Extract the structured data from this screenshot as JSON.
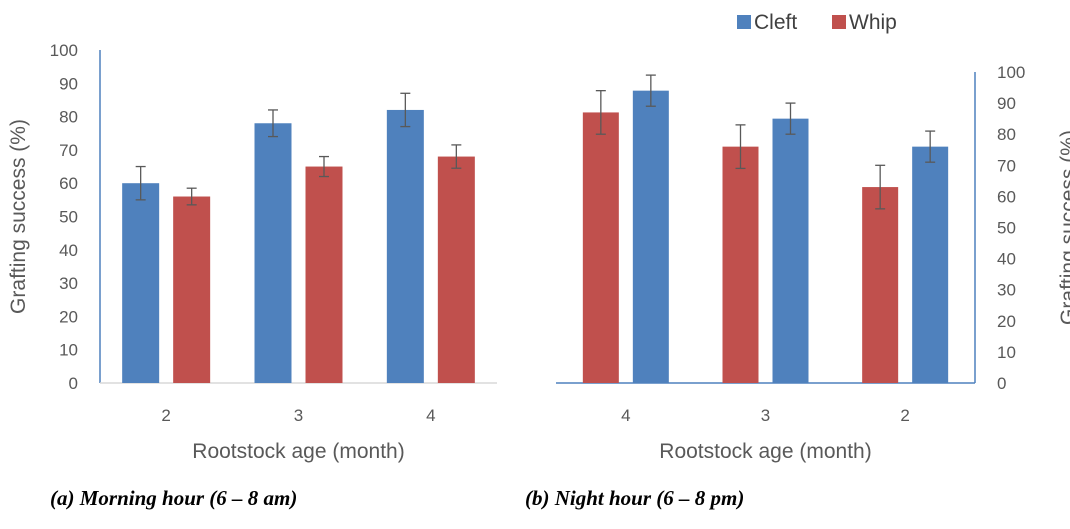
{
  "legend": [
    {
      "name": "Cleft",
      "color": "#4F81BD"
    },
    {
      "name": "Whip",
      "color": "#C0504D"
    }
  ],
  "chart_data": [
    {
      "type": "bar",
      "caption": "(a) Morning hour (6 – 8 am)",
      "xlabel": "Rootstock age (month)",
      "ylabel": "Grafting success (%)",
      "ylim": [
        0,
        100
      ],
      "yticks": [
        0,
        10,
        20,
        30,
        40,
        50,
        60,
        70,
        80,
        90,
        100
      ],
      "y_axis_position": "left",
      "grid": false,
      "categories": [
        "2",
        "3",
        "4"
      ],
      "series": [
        {
          "name": "Cleft",
          "color": "#4F81BD",
          "values": [
            60,
            78,
            82
          ],
          "errors": [
            5,
            4,
            5
          ]
        },
        {
          "name": "Whip",
          "color": "#C0504D",
          "values": [
            56,
            65,
            68
          ],
          "errors": [
            2.5,
            3,
            3.5
          ]
        }
      ]
    },
    {
      "type": "bar",
      "caption": "(b) Night hour (6 – 8 pm)",
      "xlabel": "Rootstock age (month)",
      "ylabel": "Grafting success (%)",
      "ylim": [
        0,
        100
      ],
      "yticks": [
        0,
        10,
        20,
        30,
        40,
        50,
        60,
        70,
        80,
        90,
        100
      ],
      "y_axis_position": "right",
      "grid": false,
      "categories": [
        "4",
        "3",
        "2"
      ],
      "series": [
        {
          "name": "Whip",
          "color": "#C0504D",
          "values": [
            87,
            76,
            63
          ],
          "errors": [
            7,
            7,
            7
          ]
        },
        {
          "name": "Cleft",
          "color": "#4F81BD",
          "values": [
            94,
            85,
            76
          ],
          "errors": [
            5,
            5,
            5
          ]
        }
      ]
    }
  ]
}
